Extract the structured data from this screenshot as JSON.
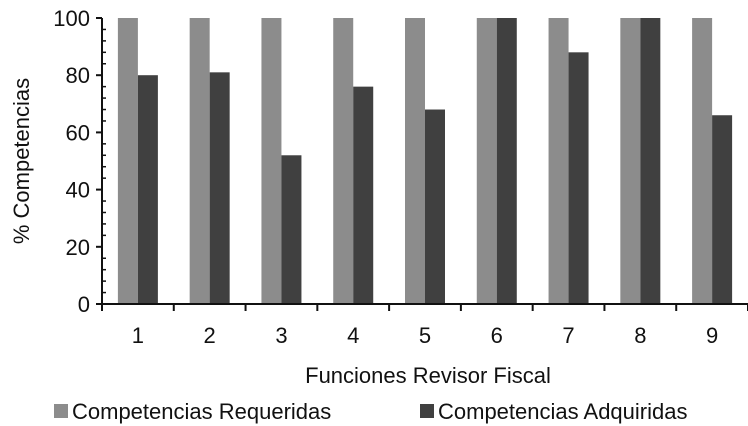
{
  "chart_data": {
    "type": "bar",
    "categories": [
      "1",
      "2",
      "3",
      "4",
      "5",
      "6",
      "7",
      "8",
      "9"
    ],
    "series": [
      {
        "name": "Competencias Requeridas",
        "values": [
          100,
          100,
          100,
          100,
          100,
          100,
          100,
          100,
          100
        ],
        "color": "#8c8c8c"
      },
      {
        "name": "Competencias Adquiridas",
        "values": [
          80,
          81,
          52,
          76,
          68,
          100,
          88,
          100,
          66
        ],
        "color": "#404040"
      }
    ],
    "xlabel": "Funciones Revisor Fiscal",
    "ylabel": "% Competencias",
    "ylim": [
      0,
      100
    ],
    "yticks": [
      0,
      20,
      40,
      60,
      80,
      100
    ],
    "grid": false,
    "legend": "bottom"
  }
}
